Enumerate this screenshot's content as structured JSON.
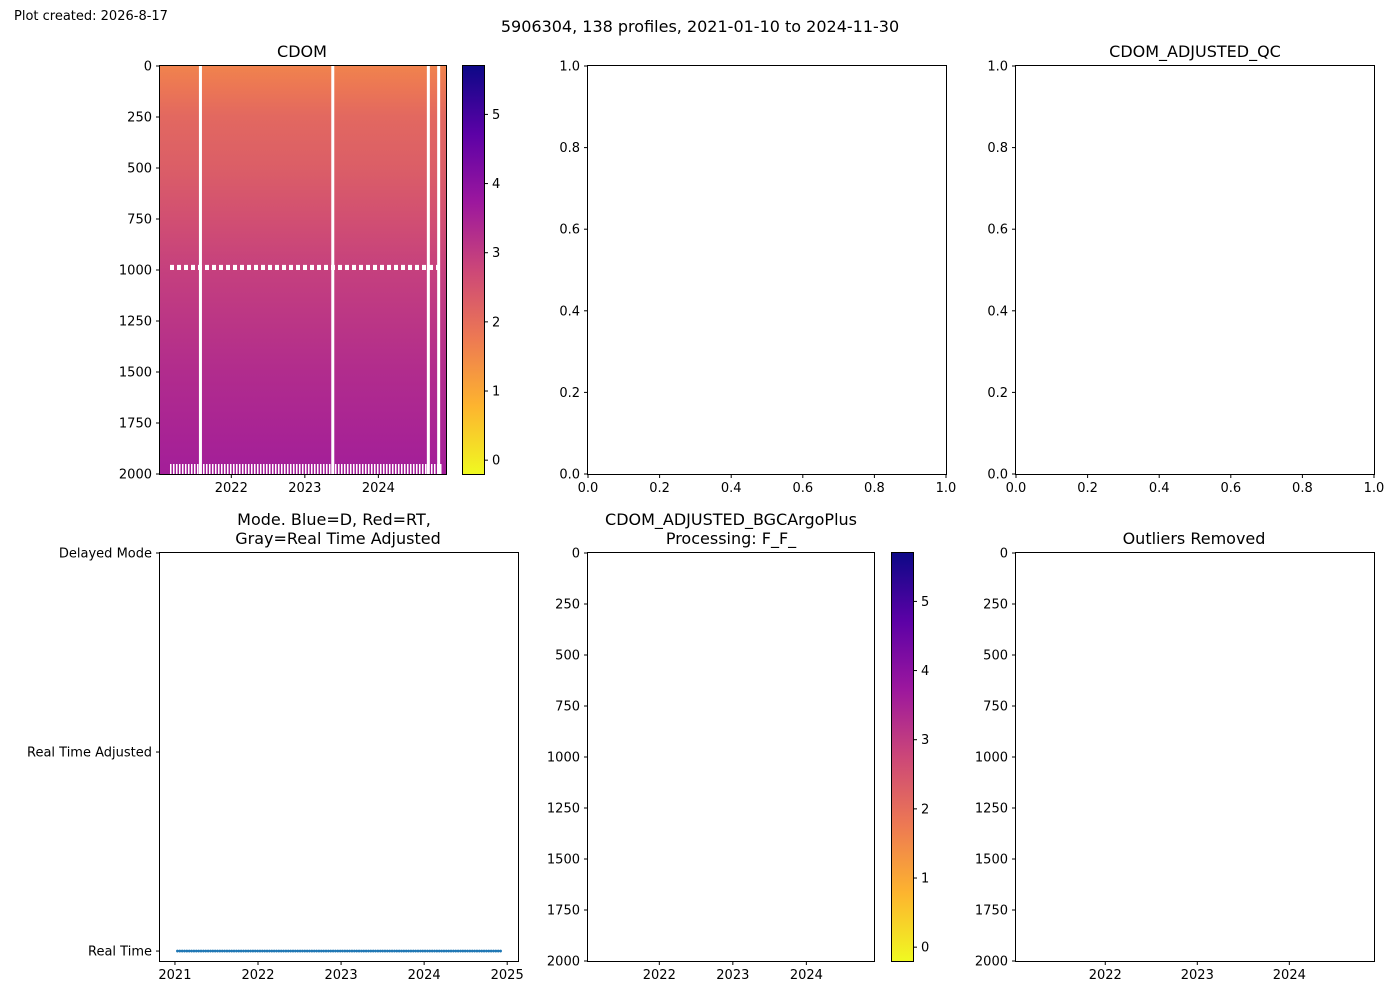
{
  "page": {
    "created": "Plot created: 2026-8-17",
    "suptitle": "5906304, 138 profiles, 2021-01-10 to 2024-11-30"
  },
  "colors": {
    "rt_points": "#1f77b4",
    "frame": "#000000",
    "colormap": "plasma_r",
    "colormap_stops": [
      "#f0f921",
      "#fdb42f",
      "#ed7953",
      "#cc4778",
      "#9c179e",
      "#5c01a6",
      "#0d0887"
    ]
  },
  "chart_data": [
    {
      "id": "cdom",
      "type": "heatmap",
      "title": "CDOM",
      "x_ticks": [
        "2022",
        "2023",
        "2024"
      ],
      "x_tick_values": [
        2022.0,
        2023.0,
        2024.0
      ],
      "xlim": [
        2021.03,
        2024.92
      ],
      "y_ticks": [
        "0",
        "250",
        "500",
        "750",
        "1000",
        "1250",
        "1500",
        "1750",
        "2000"
      ],
      "ylim": [
        2000,
        0
      ],
      "colorbar": {
        "ticks": [
          "0",
          "1",
          "2",
          "3",
          "4",
          "5"
        ],
        "range": [
          -0.2,
          5.7
        ]
      },
      "depth_profile": [
        {
          "depth": 0,
          "value": 1.6
        },
        {
          "depth": 100,
          "value": 1.8
        },
        {
          "depth": 250,
          "value": 2.1
        },
        {
          "depth": 500,
          "value": 2.3
        },
        {
          "depth": 750,
          "value": 2.6
        },
        {
          "depth": 1000,
          "value": 2.9
        },
        {
          "depth": 1500,
          "value": 3.3
        },
        {
          "depth": 2000,
          "value": 3.6
        }
      ],
      "gap_times": [
        2021.58,
        2023.38,
        2024.68,
        2024.82
      ],
      "gap_band_depth": [
        975,
        1000
      ],
      "notes": "no grid, colorbar right"
    },
    {
      "id": "cdom-adjusted-qc",
      "type": "scatter",
      "title": "CDOM_ADJUSTED_QC",
      "x_ticks": [
        "0.0",
        "0.2",
        "0.4",
        "0.6",
        "0.8",
        "1.0"
      ],
      "y_ticks": [
        "0.0",
        "0.2",
        "0.4",
        "0.6",
        "0.8",
        "1.0"
      ],
      "xlim": [
        0,
        1
      ],
      "ylim": [
        0,
        1
      ],
      "series": []
    },
    {
      "id": "data-mode",
      "type": "scatter",
      "title_line1": "Mode. Blue=D, Red=RT,",
      "title_line2": "Gray=Real Time Adjusted",
      "x_ticks": [
        "2021",
        "2022",
        "2023",
        "2024",
        "2025"
      ],
      "x_tick_values": [
        2021,
        2022,
        2023,
        2024,
        2025
      ],
      "xlim": [
        2020.82,
        2025.13
      ],
      "y_ticks": [
        "Delayed Mode",
        "Real Time Adjusted",
        "Real Time"
      ],
      "y_tick_values": [
        2,
        1,
        0
      ],
      "ylim": [
        -0.05,
        2.0
      ],
      "series": [
        {
          "mode_value": 0,
          "start": 2021.03,
          "end": 2024.92,
          "count": 138
        }
      ]
    },
    {
      "id": "cdom-adjusted-bgc",
      "type": "heatmap",
      "title_line1": "CDOM_ADJUSTED_BGCArgoPlus",
      "title_line2": "Processing: F_F_",
      "x_ticks": [
        "2022",
        "2023",
        "2024"
      ],
      "x_tick_values": [
        2022,
        2023,
        2024
      ],
      "xlim": [
        2021.03,
        2024.92
      ],
      "y_ticks": [
        "0",
        "250",
        "500",
        "750",
        "1000",
        "1250",
        "1500",
        "1750",
        "2000"
      ],
      "ylim": [
        2000,
        0
      ],
      "colorbar": {
        "ticks": [
          "0",
          "1",
          "2",
          "3",
          "4",
          "5"
        ],
        "range": [
          -0.2,
          5.7
        ]
      },
      "values": []
    },
    {
      "id": "outliers-removed",
      "type": "heatmap",
      "title": "Outliers Removed",
      "x_ticks": [
        "2022",
        "2023",
        "2024"
      ],
      "x_tick_values": [
        2022,
        2023,
        2024
      ],
      "xlim": [
        2021.03,
        2024.92
      ],
      "y_ticks": [
        "0",
        "250",
        "500",
        "750",
        "1000",
        "1250",
        "1500",
        "1750",
        "2000"
      ],
      "ylim": [
        2000,
        0
      ],
      "values": []
    }
  ]
}
